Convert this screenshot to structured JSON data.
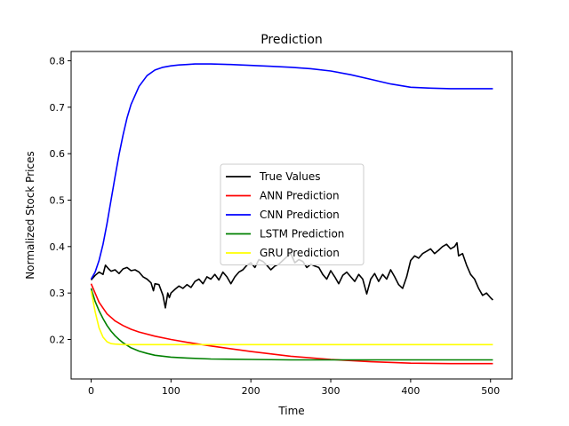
{
  "chart_data": {
    "type": "line",
    "title": "Prediction",
    "xlabel": "Time",
    "ylabel": "Normalized Stock Prices",
    "xlim": [
      -25,
      527
    ],
    "ylim": [
      0.115,
      0.82
    ],
    "xticks": [
      0,
      100,
      200,
      300,
      400,
      500
    ],
    "yticks": [
      0.2,
      0.3,
      0.4,
      0.5,
      0.6,
      0.7,
      0.8
    ],
    "legend": "center",
    "grid": false,
    "series": [
      {
        "name": "True Values",
        "color": "#000000",
        "x": [
          0,
          5,
          10,
          15,
          18,
          22,
          25,
          30,
          35,
          40,
          45,
          50,
          55,
          60,
          65,
          70,
          75,
          78,
          80,
          85,
          90,
          93,
          96,
          98,
          100,
          105,
          110,
          115,
          120,
          125,
          130,
          135,
          140,
          145,
          150,
          155,
          160,
          165,
          170,
          175,
          180,
          185,
          190,
          195,
          200,
          205,
          210,
          215,
          220,
          225,
          230,
          235,
          240,
          245,
          250,
          255,
          260,
          265,
          270,
          275,
          280,
          285,
          290,
          295,
          300,
          305,
          310,
          315,
          320,
          325,
          330,
          335,
          340,
          345,
          350,
          355,
          360,
          365,
          370,
          375,
          380,
          385,
          390,
          395,
          400,
          405,
          410,
          415,
          420,
          425,
          430,
          435,
          440,
          445,
          450,
          455,
          458,
          460,
          465,
          470,
          475,
          480,
          485,
          490,
          495,
          500,
          503
        ],
        "y": [
          0.328,
          0.338,
          0.345,
          0.34,
          0.36,
          0.352,
          0.347,
          0.35,
          0.342,
          0.352,
          0.355,
          0.348,
          0.35,
          0.345,
          0.335,
          0.33,
          0.322,
          0.305,
          0.32,
          0.318,
          0.295,
          0.268,
          0.3,
          0.29,
          0.3,
          0.308,
          0.315,
          0.31,
          0.318,
          0.312,
          0.325,
          0.33,
          0.32,
          0.335,
          0.33,
          0.34,
          0.328,
          0.345,
          0.335,
          0.32,
          0.335,
          0.345,
          0.35,
          0.36,
          0.365,
          0.355,
          0.372,
          0.368,
          0.36,
          0.35,
          0.358,
          0.362,
          0.37,
          0.378,
          0.385,
          0.365,
          0.372,
          0.368,
          0.355,
          0.362,
          0.358,
          0.355,
          0.34,
          0.33,
          0.348,
          0.335,
          0.32,
          0.338,
          0.345,
          0.335,
          0.325,
          0.34,
          0.33,
          0.298,
          0.33,
          0.342,
          0.325,
          0.34,
          0.33,
          0.35,
          0.335,
          0.318,
          0.31,
          0.335,
          0.37,
          0.38,
          0.375,
          0.385,
          0.39,
          0.395,
          0.385,
          0.392,
          0.4,
          0.405,
          0.395,
          0.4,
          0.408,
          0.38,
          0.385,
          0.36,
          0.34,
          0.33,
          0.31,
          0.295,
          0.3,
          0.29,
          0.285
        ],
        "values_note": ""
      },
      {
        "name": "ANN Prediction",
        "color": "#ff0000",
        "x": [
          0,
          10,
          20,
          30,
          40,
          50,
          60,
          80,
          100,
          120,
          150,
          200,
          250,
          300,
          350,
          400,
          450,
          503
        ],
        "y": [
          0.32,
          0.28,
          0.255,
          0.24,
          0.23,
          0.222,
          0.216,
          0.207,
          0.2,
          0.194,
          0.186,
          0.174,
          0.164,
          0.157,
          0.152,
          0.149,
          0.148,
          0.148
        ]
      },
      {
        "name": "CNN Prediction",
        "color": "#0000ff",
        "x": [
          0,
          5,
          10,
          15,
          20,
          25,
          30,
          35,
          40,
          45,
          50,
          60,
          70,
          80,
          90,
          100,
          110,
          120,
          130,
          140,
          150,
          175,
          200,
          225,
          250,
          275,
          300,
          325,
          350,
          375,
          400,
          425,
          450,
          475,
          503
        ],
        "y": [
          0.33,
          0.345,
          0.37,
          0.405,
          0.45,
          0.5,
          0.55,
          0.598,
          0.64,
          0.677,
          0.706,
          0.745,
          0.768,
          0.78,
          0.786,
          0.789,
          0.791,
          0.792,
          0.793,
          0.793,
          0.793,
          0.792,
          0.79,
          0.788,
          0.786,
          0.783,
          0.778,
          0.77,
          0.76,
          0.75,
          0.743,
          0.741,
          0.74,
          0.74,
          0.74
        ]
      },
      {
        "name": "LSTM Prediction",
        "color": "#008000",
        "x": [
          0,
          5,
          10,
          15,
          20,
          25,
          30,
          35,
          40,
          50,
          60,
          70,
          80,
          100,
          120,
          150,
          200,
          250,
          300,
          350,
          400,
          450,
          503
        ],
        "y": [
          0.31,
          0.282,
          0.262,
          0.245,
          0.23,
          0.218,
          0.208,
          0.2,
          0.193,
          0.182,
          0.175,
          0.17,
          0.166,
          0.162,
          0.16,
          0.158,
          0.157,
          0.156,
          0.156,
          0.156,
          0.156,
          0.156,
          0.156
        ]
      },
      {
        "name": "GRU Prediction",
        "color": "#ffff00",
        "x": [
          0,
          5,
          10,
          15,
          20,
          25,
          30,
          40,
          50,
          100,
          150,
          200,
          250,
          300,
          350,
          400,
          450,
          503
        ],
        "y": [
          0.305,
          0.26,
          0.225,
          0.205,
          0.195,
          0.191,
          0.19,
          0.189,
          0.189,
          0.189,
          0.189,
          0.189,
          0.189,
          0.189,
          0.189,
          0.189,
          0.189,
          0.189
        ]
      }
    ]
  }
}
